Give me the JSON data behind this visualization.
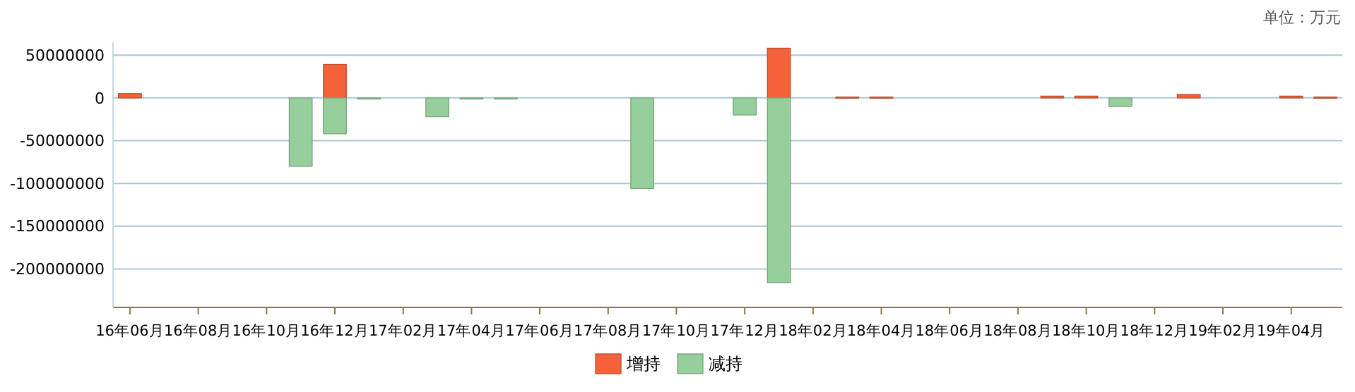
{
  "chart_data": {
    "type": "bar",
    "annotations": [
      "单位：万元"
    ],
    "categories": [
      "16年06月",
      null,
      "16年08月",
      null,
      "16年10月",
      null,
      "16年12月",
      null,
      "17年02月",
      null,
      "17年04月",
      null,
      "17年06月",
      null,
      "17年08月",
      null,
      "17年10月",
      null,
      "17年12月",
      null,
      "18年02月",
      null,
      "18年04月",
      null,
      "18年06月",
      null,
      "18年08月",
      null,
      "18年10月",
      null,
      "18年12月",
      null,
      "19年02月",
      null,
      "19年04月",
      null
    ],
    "series": [
      {
        "name": "增持",
        "color": "#f4623a",
        "values": [
          5000000,
          null,
          null,
          null,
          null,
          null,
          39000000,
          null,
          null,
          null,
          null,
          null,
          null,
          null,
          null,
          null,
          null,
          null,
          null,
          58000000,
          null,
          1000000,
          1000000,
          null,
          null,
          null,
          null,
          2000000,
          2000000,
          null,
          null,
          4000000,
          null,
          null,
          2000000,
          1000000
        ]
      },
      {
        "name": "减持",
        "color": "#96cf9c",
        "values": [
          null,
          null,
          null,
          null,
          null,
          -80000000,
          -42000000,
          -1000000,
          null,
          -22000000,
          -1000000,
          -1000000,
          null,
          null,
          null,
          -106000000,
          null,
          null,
          -20000000,
          -216000000,
          null,
          null,
          null,
          null,
          null,
          null,
          null,
          null,
          null,
          -10000000,
          null,
          null,
          null,
          null,
          null,
          null
        ]
      }
    ],
    "ylim": [
      -245000000,
      65000000
    ],
    "yticks": [
      -200000000,
      -150000000,
      -100000000,
      -50000000,
      0,
      50000000
    ],
    "grid": "y",
    "legend": "bottom"
  }
}
